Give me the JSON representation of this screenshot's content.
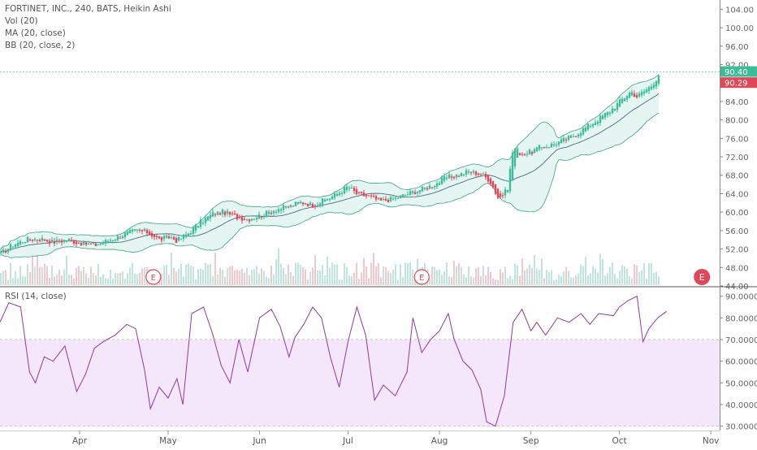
{
  "chart_data": {
    "type": "candlestick",
    "title": "FORTINET, INC., 240, BATS, Heikin Ashi",
    "indicators": [
      "Vol (20)",
      "MA (20, close)",
      "BB (20, close, 2)"
    ],
    "price_axis": {
      "ylim": [
        44,
        106
      ],
      "ticks": [
        "104.00",
        "100.00",
        "96.00",
        "92.00",
        "88.00",
        "84.00",
        "80.00",
        "76.00",
        "72.00",
        "68.00",
        "64.00",
        "60.00",
        "56.00",
        "52.00",
        "48.00",
        "44.00"
      ],
      "last_price_label": "90.40",
      "ma_price_label": "90.29",
      "last_price_color": "#3cbc98",
      "ma_price_color": "#e0485a"
    },
    "x_axis": {
      "months": [
        "Apr",
        "May",
        "Jun",
        "Jul",
        "Aug",
        "Sep",
        "Oct",
        "Nov"
      ],
      "start": "2018-03-05",
      "end": "2018-11-04",
      "month_ticks": [
        "2018-04-01",
        "2018-05-01",
        "2018-06-01",
        "2018-07-01",
        "2018-08-01",
        "2018-09-01",
        "2018-10-01",
        "2018-11-01"
      ]
    },
    "price_path": [
      [
        "2018-03-05",
        50.8
      ],
      [
        "2018-03-09",
        52.8
      ],
      [
        "2018-03-14",
        54.1
      ],
      [
        "2018-03-19",
        54.2
      ],
      [
        "2018-03-23",
        53.5
      ],
      [
        "2018-03-28",
        54.0
      ],
      [
        "2018-04-02",
        53.2
      ],
      [
        "2018-04-06",
        52.8
      ],
      [
        "2018-04-11",
        53.9
      ],
      [
        "2018-04-16",
        55.2
      ],
      [
        "2018-04-20",
        56.0
      ],
      [
        "2018-04-24",
        55.7
      ],
      [
        "2018-04-28",
        54.1
      ],
      [
        "2018-05-02",
        54.6
      ],
      [
        "2018-05-04",
        53.8
      ],
      [
        "2018-05-08",
        55.5
      ],
      [
        "2018-05-12",
        57.8
      ],
      [
        "2018-05-16",
        59.6
      ],
      [
        "2018-05-20",
        60.0
      ],
      [
        "2018-05-24",
        59.0
      ],
      [
        "2018-05-28",
        58.5
      ],
      [
        "2018-06-02",
        59.4
      ],
      [
        "2018-06-06",
        60.5
      ],
      [
        "2018-06-11",
        61.2
      ],
      [
        "2018-06-15",
        62.2
      ],
      [
        "2018-06-19",
        61.5
      ],
      [
        "2018-06-23",
        62.6
      ],
      [
        "2018-06-27",
        63.8
      ],
      [
        "2018-07-01",
        65.6
      ],
      [
        "2018-07-04",
        63.9
      ],
      [
        "2018-07-08",
        63.4
      ],
      [
        "2018-07-12",
        62.4
      ],
      [
        "2018-07-17",
        63.0
      ],
      [
        "2018-07-21",
        63.9
      ],
      [
        "2018-07-25",
        64.8
      ],
      [
        "2018-07-28",
        65.4
      ],
      [
        "2018-07-31",
        66.2
      ],
      [
        "2018-08-03",
        67.4
      ],
      [
        "2018-08-07",
        68.0
      ],
      [
        "2018-08-11",
        68.8
      ],
      [
        "2018-08-15",
        68.3
      ],
      [
        "2018-08-18",
        67.0
      ],
      [
        "2018-08-21",
        63.0
      ],
      [
        "2018-08-24",
        64.8
      ],
      [
        "2018-08-26",
        74.0
      ],
      [
        "2018-08-29",
        72.6
      ],
      [
        "2018-09-01",
        73.0
      ],
      [
        "2018-09-04",
        74.0
      ],
      [
        "2018-09-08",
        74.6
      ],
      [
        "2018-09-13",
        75.8
      ],
      [
        "2018-09-16",
        76.8
      ],
      [
        "2018-09-20",
        78.5
      ],
      [
        "2018-09-24",
        80.2
      ],
      [
        "2018-09-28",
        82.0
      ],
      [
        "2018-10-02",
        84.5
      ],
      [
        "2018-10-05",
        86.2
      ],
      [
        "2018-10-07",
        85.0
      ],
      [
        "2018-10-09",
        86.0
      ],
      [
        "2018-10-12",
        87.5
      ],
      [
        "2018-10-15",
        90.4
      ]
    ],
    "earnings_markers": [
      {
        "label": "E",
        "date": "2018-04-26",
        "color": "#e0485a"
      },
      {
        "label": "E",
        "date": "2018-07-26",
        "color": "#e0485a"
      },
      {
        "label": "E",
        "date": "2018-10-29",
        "color": "#e0485a",
        "filled": true
      }
    ],
    "rsi": {
      "label": "RSI (14, close)",
      "ylim": [
        28,
        94
      ],
      "overbought": 70,
      "oversold": 30,
      "ticks": [
        "90.0000",
        "80.0000",
        "70.0000",
        "60.0000",
        "50.0000",
        "40.0000",
        "30.0000"
      ],
      "path": [
        [
          "2018-03-05",
          78
        ],
        [
          "2018-03-08",
          87
        ],
        [
          "2018-03-12",
          85
        ],
        [
          "2018-03-15",
          55
        ],
        [
          "2018-03-17",
          50
        ],
        [
          "2018-03-20",
          62
        ],
        [
          "2018-03-23",
          60
        ],
        [
          "2018-03-27",
          67
        ],
        [
          "2018-03-31",
          46
        ],
        [
          "2018-04-03",
          54
        ],
        [
          "2018-04-06",
          66
        ],
        [
          "2018-04-09",
          69
        ],
        [
          "2018-04-13",
          72
        ],
        [
          "2018-04-17",
          77
        ],
        [
          "2018-04-20",
          75
        ],
        [
          "2018-04-23",
          56
        ],
        [
          "2018-04-25",
          38
        ],
        [
          "2018-04-28",
          48
        ],
        [
          "2018-05-01",
          43
        ],
        [
          "2018-05-04",
          52
        ],
        [
          "2018-05-06",
          40
        ],
        [
          "2018-05-09",
          82
        ],
        [
          "2018-05-13",
          85
        ],
        [
          "2018-05-16",
          73
        ],
        [
          "2018-05-19",
          58
        ],
        [
          "2018-05-22",
          50
        ],
        [
          "2018-05-25",
          70
        ],
        [
          "2018-05-28",
          55
        ],
        [
          "2018-06-01",
          80
        ],
        [
          "2018-06-05",
          84
        ],
        [
          "2018-06-08",
          76
        ],
        [
          "2018-06-11",
          62
        ],
        [
          "2018-06-13",
          71
        ],
        [
          "2018-06-16",
          77
        ],
        [
          "2018-06-19",
          85
        ],
        [
          "2018-06-22",
          80
        ],
        [
          "2018-06-25",
          62
        ],
        [
          "2018-06-28",
          48
        ],
        [
          "2018-07-01",
          69
        ],
        [
          "2018-07-04",
          85
        ],
        [
          "2018-07-07",
          72
        ],
        [
          "2018-07-10",
          42
        ],
        [
          "2018-07-13",
          49
        ],
        [
          "2018-07-17",
          44
        ],
        [
          "2018-07-21",
          55
        ],
        [
          "2018-07-23",
          80
        ],
        [
          "2018-07-26",
          64
        ],
        [
          "2018-07-29",
          70
        ],
        [
          "2018-08-01",
          74
        ],
        [
          "2018-08-04",
          82
        ],
        [
          "2018-08-06",
          70
        ],
        [
          "2018-08-09",
          60
        ],
        [
          "2018-08-12",
          56
        ],
        [
          "2018-08-15",
          47
        ],
        [
          "2018-08-17",
          32
        ],
        [
          "2018-08-20",
          30
        ],
        [
          "2018-08-23",
          44
        ],
        [
          "2018-08-26",
          78
        ],
        [
          "2018-08-29",
          84
        ],
        [
          "2018-09-01",
          74
        ],
        [
          "2018-09-03",
          78
        ],
        [
          "2018-09-06",
          72
        ],
        [
          "2018-09-10",
          80
        ],
        [
          "2018-09-14",
          78
        ],
        [
          "2018-09-18",
          82
        ],
        [
          "2018-09-21",
          77
        ],
        [
          "2018-09-24",
          82
        ],
        [
          "2018-09-29",
          81
        ],
        [
          "2018-10-01",
          85
        ],
        [
          "2018-10-04",
          88
        ],
        [
          "2018-10-07",
          90
        ],
        [
          "2018-10-09",
          69
        ],
        [
          "2018-10-11",
          75
        ],
        [
          "2018-10-14",
          80
        ],
        [
          "2018-10-17",
          83
        ]
      ]
    },
    "colors": {
      "up": "#3cbc98",
      "down": "#e0485a",
      "bb_fill": "#dff3ef",
      "bb_line": "#3aa386",
      "ma_line": "#4a6b80",
      "rsi_line": "#8e3a9c",
      "rsi_band": "#f4e6fb"
    }
  }
}
